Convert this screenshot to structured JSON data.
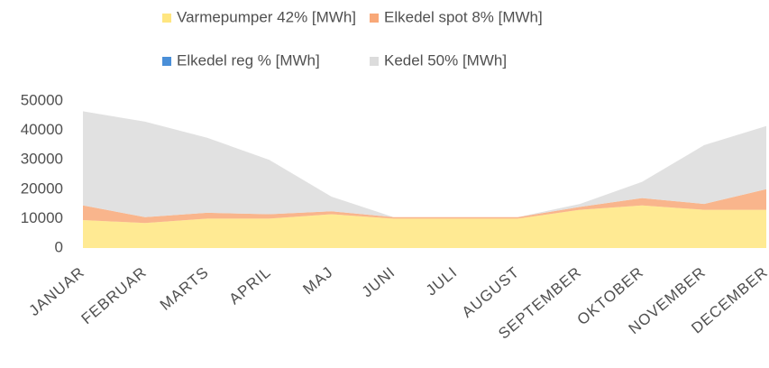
{
  "chart_data": {
    "type": "stacked_area",
    "categories": [
      "JANUAR",
      "FEBRUAR",
      "MARTS",
      "APRIL",
      "MAJ",
      "JUNI",
      "JULI",
      "AUGUST",
      "SEPTEMBER",
      "OKTOBER",
      "NOVEMBER",
      "DECEMBER"
    ],
    "series": [
      {
        "name": "Varmepumper 42% [MWh]",
        "color": "#ffe680",
        "values": [
          9500,
          8500,
          10000,
          10000,
          11500,
          10000,
          10000,
          10000,
          13000,
          14500,
          13000,
          13000
        ]
      },
      {
        "name": "Elkedel spot 8% [MWh]",
        "color": "#f8a878",
        "values": [
          5000,
          2000,
          2000,
          1500,
          1000,
          500,
          500,
          500,
          1000,
          2500,
          2000,
          7000
        ]
      },
      {
        "name": "Elkedel reg % [MWh]",
        "color": "#4a8fd8",
        "values": [
          0,
          0,
          0,
          0,
          0,
          0,
          0,
          0,
          0,
          0,
          0,
          0
        ]
      },
      {
        "name": "Kedel 50% [MWh]",
        "color": "#dcdcdc",
        "values": [
          32000,
          32500,
          25500,
          18500,
          5000,
          0,
          0,
          0,
          1000,
          5500,
          20000,
          21500
        ]
      }
    ],
    "ylim": [
      0,
      50000
    ],
    "yticks": [
      0,
      10000,
      20000,
      30000,
      40000,
      50000
    ]
  }
}
